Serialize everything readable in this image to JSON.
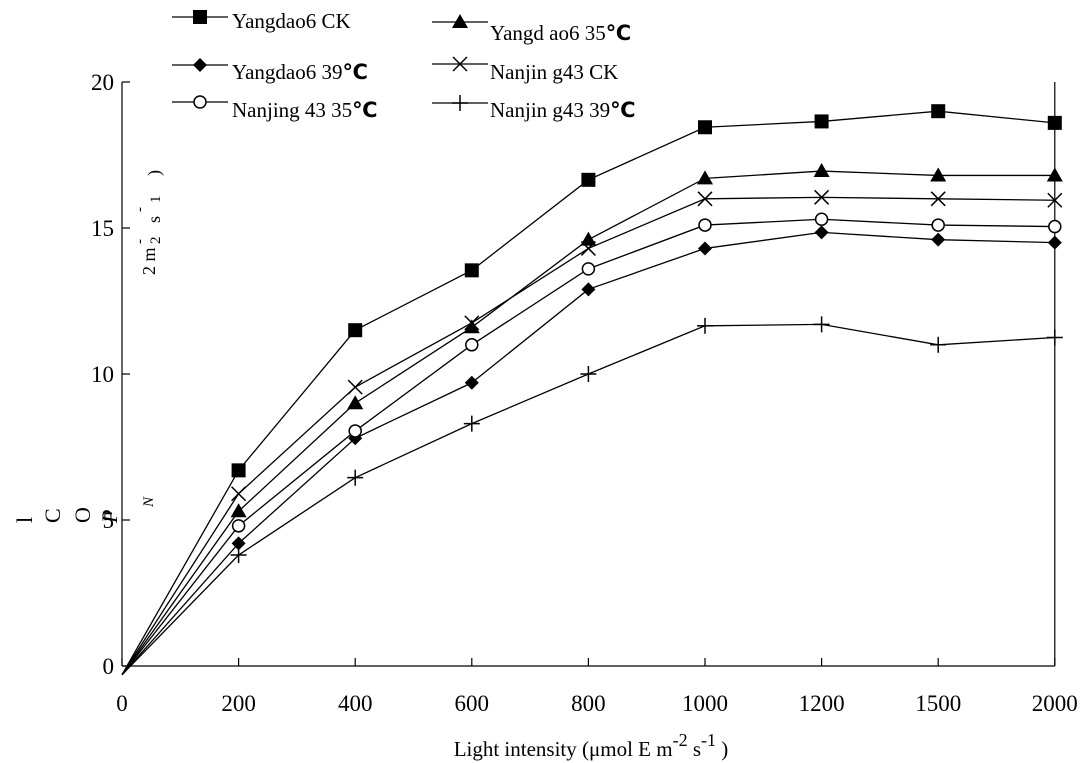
{
  "chart_data": {
    "type": "line",
    "xlabel": "Light intensity (μmol E m-2 s-1 )",
    "xlabel_parts": {
      "main": "Light intensity (μmol E m",
      "sup1": "-2",
      "mid": " s",
      "sup2": "-1",
      "end": " )"
    },
    "ylabel_pieces": {
      "a": "l",
      "b": "C",
      "c": "O",
      "d": "P",
      "e": "N",
      "f": "2 m",
      "g": "2",
      "h": "s",
      "i": "1",
      "j": ")",
      "k": "-",
      "l": "-"
    },
    "categories": [
      "0",
      "200",
      "400",
      "600",
      "800",
      "1000",
      "1200",
      "1500",
      "2000"
    ],
    "y_ticks": [
      "0",
      "5",
      "10",
      "15",
      "20"
    ],
    "ylim": [
      0,
      20
    ],
    "legend_position": "top-left",
    "series": [
      {
        "name": "Yangdao6 CK",
        "name_html": "Yangdao6 CK",
        "marker": "square",
        "values": [
          -0.3,
          6.7,
          11.5,
          13.55,
          16.65,
          18.45,
          18.65,
          19.0,
          18.6
        ]
      },
      {
        "name": "Yangd ao6 35℃",
        "name_text": "Yangd ao6 35",
        "name_unit": "℃",
        "marker": "triangle",
        "values": [
          -0.3,
          5.3,
          9.0,
          11.6,
          14.6,
          16.7,
          16.95,
          16.8,
          16.8
        ]
      },
      {
        "name": "Yangdao6 39℃",
        "name_text": "Yangdao6 39",
        "name_unit": "℃",
        "marker": "diamond",
        "values": [
          -0.3,
          4.2,
          7.8,
          9.7,
          12.9,
          14.3,
          14.85,
          14.6,
          14.5
        ]
      },
      {
        "name": "Nanjin g43 CK",
        "name_html": "Nanjin g43 CK",
        "marker": "x",
        "values": [
          -0.3,
          5.9,
          9.55,
          11.75,
          14.3,
          16.0,
          16.05,
          16.0,
          15.95
        ]
      },
      {
        "name": "Nanjing 43 35℃",
        "name_text": "Nanjing 43 35",
        "name_unit": "℃",
        "marker": "circle",
        "values": [
          -0.3,
          4.8,
          8.05,
          11.0,
          13.6,
          15.1,
          15.3,
          15.1,
          15.05
        ]
      },
      {
        "name": "Nanjin g43 39℃",
        "name_text": "Nanjin g43 39",
        "name_unit": "℃",
        "marker": "plus",
        "values": [
          -0.3,
          3.8,
          6.45,
          8.3,
          10.0,
          11.65,
          11.7,
          11.0,
          11.25
        ]
      }
    ]
  }
}
